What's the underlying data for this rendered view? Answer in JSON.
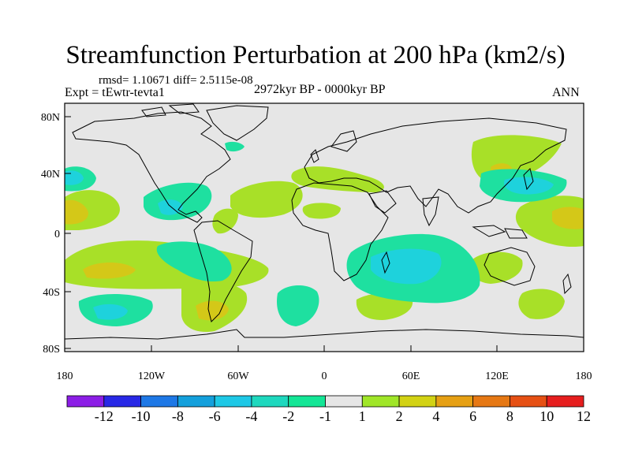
{
  "title": "Streamfunction Perturbation at 200 hPa (km2/s)",
  "stats": "rmsd= 1.10671 diff= 2.5115e-08",
  "experiment": "Expt = tEwtr-tevta1",
  "period": "2972kyr BP - 0000kyr BP",
  "season": "ANN",
  "axes": {
    "lat_ticks": [
      "80N",
      "40N",
      "0",
      "40S",
      "80S"
    ],
    "lon_ticks": [
      "180",
      "120W",
      "60W",
      "0",
      "60E",
      "120E",
      "180"
    ]
  },
  "colorbar": {
    "labels": [
      "-12",
      "-10",
      "-8",
      "-6",
      "-4",
      "-2",
      "-1",
      "1",
      "2",
      "4",
      "6",
      "8",
      "10",
      "12"
    ],
    "colors": [
      "#8c1ee6",
      "#2828e6",
      "#1e78e6",
      "#14a0dc",
      "#1ec8e6",
      "#1ed8be",
      "#14e696",
      "#e6e6e6",
      "#a0e628",
      "#d2d214",
      "#e6a014",
      "#e67814",
      "#e65014",
      "#e61e1e"
    ]
  },
  "palette": {
    "neutral": "#e6e6e6",
    "pos_light": "#a8e028",
    "pos_mid": "#d4c818",
    "neg_light": "#1ee0a0",
    "neg_mid": "#1ed2dc"
  }
}
